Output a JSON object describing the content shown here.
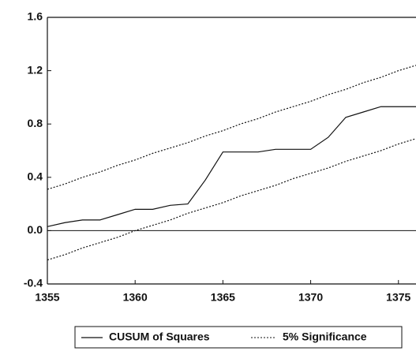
{
  "chart_data": {
    "type": "line",
    "x": [
      1355,
      1356,
      1357,
      1358,
      1359,
      1360,
      1361,
      1362,
      1363,
      1364,
      1365,
      1366,
      1367,
      1368,
      1369,
      1370,
      1371,
      1372,
      1373,
      1374,
      1375,
      1376
    ],
    "series": [
      {
        "name": "CUSUM of Squares",
        "color": "#111111",
        "style": "solid",
        "values": [
          0.03,
          0.06,
          0.08,
          0.08,
          0.12,
          0.16,
          0.16,
          0.19,
          0.2,
          0.38,
          0.59,
          0.59,
          0.59,
          0.61,
          0.61,
          0.61,
          0.7,
          0.85,
          0.89,
          0.93,
          0.93,
          0.93
        ]
      }
    ],
    "bands": {
      "name": "5% Significance",
      "color": "#111111",
      "style": "dashed",
      "upper": [
        0.31,
        0.35,
        0.4,
        0.44,
        0.49,
        0.53,
        0.58,
        0.62,
        0.66,
        0.71,
        0.75,
        0.8,
        0.84,
        0.89,
        0.93,
        0.97,
        1.02,
        1.06,
        1.11,
        1.15,
        1.2,
        1.24
      ],
      "lower": [
        -0.22,
        -0.18,
        -0.13,
        -0.09,
        -0.05,
        0.0,
        0.04,
        0.08,
        0.13,
        0.17,
        0.21,
        0.26,
        0.3,
        0.34,
        0.39,
        0.43,
        0.47,
        0.52,
        0.56,
        0.6,
        0.65,
        0.69
      ]
    },
    "xlim": [
      1355,
      1376
    ],
    "xticks": [
      1355,
      1360,
      1365,
      1370,
      1375
    ],
    "ylim": [
      -0.4,
      1.6
    ],
    "yticks": [
      1.6,
      1.2,
      0.8,
      0.4,
      {
        "value": 0,
        "label": "0.0"
      },
      -0.4
    ],
    "zero_line": true,
    "legend": "bottom"
  }
}
